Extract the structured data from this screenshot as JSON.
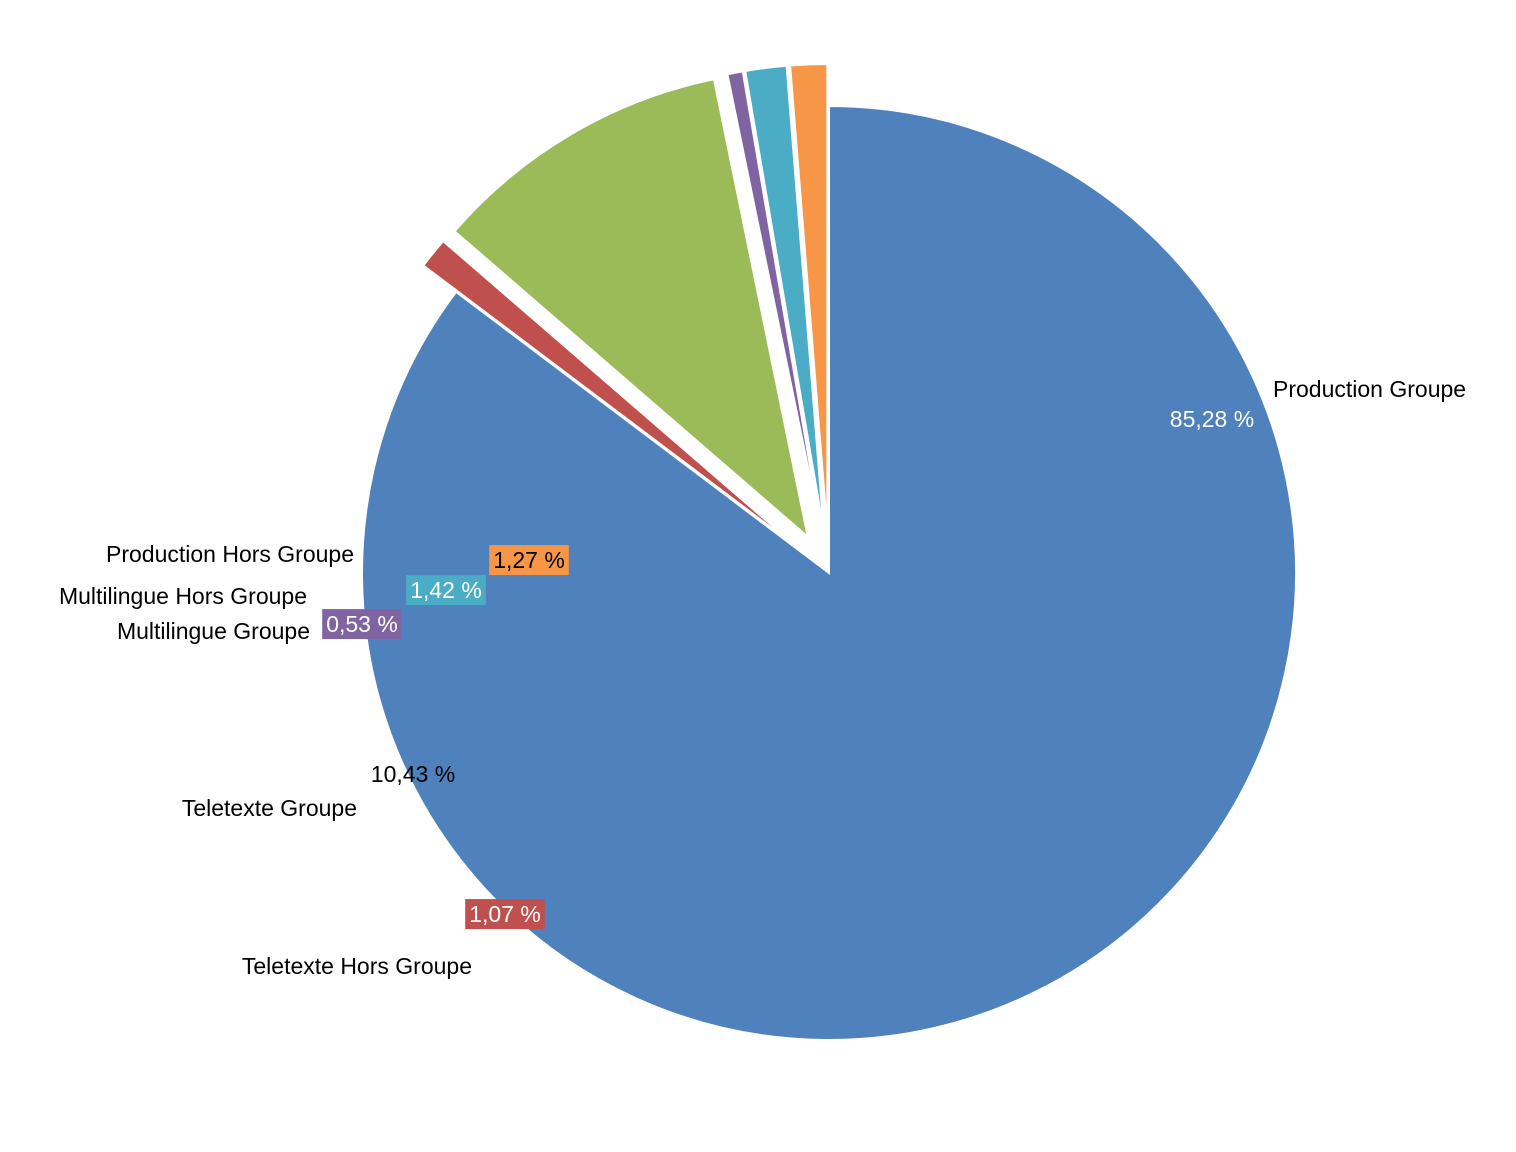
{
  "chart_data": {
    "type": "pie",
    "title": "",
    "slices": [
      {
        "label": "Production Groupe",
        "value": 85.28,
        "value_label": "85,28 %",
        "color": "#4f81bd",
        "label_color": "#ffffff",
        "label_bg": ""
      },
      {
        "label": "Teletexte Hors Groupe",
        "value": 1.07,
        "value_label": "1,07 %",
        "color": "#c0504d",
        "label_color": "#ffffff",
        "label_bg": "#c0504d"
      },
      {
        "label": "Teletexte Groupe",
        "value": 10.43,
        "value_label": "10,43 %",
        "color": "#9bbb59",
        "label_color": "#000000",
        "label_bg": ""
      },
      {
        "label": "Multilingue Groupe",
        "value": 0.53,
        "value_label": "0,53 %",
        "color": "#8064a2",
        "label_color": "#ffffff",
        "label_bg": "#8064a2"
      },
      {
        "label": "Multilingue Hors Groupe",
        "value": 1.42,
        "value_label": "1,42 %",
        "color": "#4bacc6",
        "label_color": "#ffffff",
        "label_bg": "#4bacc6"
      },
      {
        "label": "Production Hors Groupe",
        "value": 1.27,
        "value_label": "1,27 %",
        "color": "#f79646",
        "label_color": "#000000",
        "label_bg": "#f79646"
      }
    ],
    "exploded": [
      "Teletexte Hors Groupe",
      "Teletexte Groupe",
      "Multilingue Groupe",
      "Multilingue Hors Groupe",
      "Production Hors Groupe"
    ],
    "legend": "none",
    "category_labels": "outside",
    "value_labels": "inside"
  }
}
